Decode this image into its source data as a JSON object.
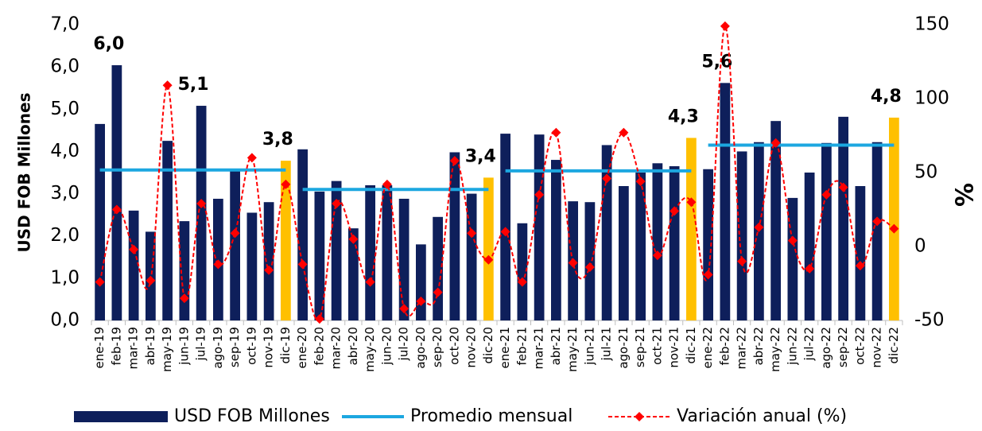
{
  "chart_data": {
    "type": "bar",
    "categories": [
      "ene-19",
      "feb-19",
      "mar-19",
      "abr-19",
      "may-19",
      "jun-19",
      "jul-19",
      "ago-19",
      "sep-19",
      "oct-19",
      "nov-19",
      "dic-19",
      "ene-20",
      "feb-20",
      "mar-20",
      "abr-20",
      "may-20",
      "jun-20",
      "jul-20",
      "ago-20",
      "sep-20",
      "oct-20",
      "nov-20",
      "dic-20",
      "ene-21",
      "feb-21",
      "mar-21",
      "abr-21",
      "may-21",
      "jun-21",
      "jul-21",
      "ago-21",
      "sep-21",
      "oct-21",
      "nov-21",
      "dic-21",
      "ene-22",
      "feb-22",
      "mar-22",
      "abr-22",
      "may-22",
      "jun-22",
      "jul-22",
      "ago-22",
      "sep-22",
      "oct-22",
      "nov-22",
      "dic-22"
    ],
    "ylabel": "USD FOB Millones",
    "y2label": "%",
    "ylim": [
      0,
      7
    ],
    "yticks": [
      {
        "value": 0,
        "label": "0,0"
      },
      {
        "value": 1,
        "label": "1,0"
      },
      {
        "value": 2,
        "label": "2,0"
      },
      {
        "value": 3,
        "label": "3,0"
      },
      {
        "value": 4,
        "label": "4,0"
      },
      {
        "value": 5,
        "label": "5,0"
      },
      {
        "value": 6,
        "label": "6,0"
      },
      {
        "value": 7,
        "label": "7,0"
      }
    ],
    "y2lim": [
      -50,
      150
    ],
    "y2ticks": [
      -50,
      0,
      50,
      100,
      150
    ],
    "legend": "bottom",
    "series": [
      {
        "name": "USD FOB Millones",
        "type": "bar",
        "color": "#0e1f5b",
        "highlight_color": "#ffc000",
        "colors": [
          "#0e1f5b",
          "#0e1f5b",
          "#0e1f5b",
          "#0e1f5b",
          "#0e1f5b",
          "#0e1f5b",
          "#0e1f5b",
          "#0e1f5b",
          "#0e1f5b",
          "#0e1f5b",
          "#0e1f5b",
          "#ffc000",
          "#0e1f5b",
          "#0e1f5b",
          "#0e1f5b",
          "#0e1f5b",
          "#0e1f5b",
          "#0e1f5b",
          "#0e1f5b",
          "#0e1f5b",
          "#0e1f5b",
          "#0e1f5b",
          "#0e1f5b",
          "#ffc000",
          "#0e1f5b",
          "#0e1f5b",
          "#0e1f5b",
          "#0e1f5b",
          "#0e1f5b",
          "#0e1f5b",
          "#0e1f5b",
          "#0e1f5b",
          "#0e1f5b",
          "#0e1f5b",
          "#0e1f5b",
          "#ffc000",
          "#0e1f5b",
          "#0e1f5b",
          "#0e1f5b",
          "#0e1f5b",
          "#0e1f5b",
          "#0e1f5b",
          "#0e1f5b",
          "#0e1f5b",
          "#0e1f5b",
          "#0e1f5b",
          "#0e1f5b",
          "#ffc000"
        ],
        "values": [
          4.65,
          6.04,
          2.6,
          2.1,
          4.25,
          2.35,
          5.08,
          2.88,
          3.55,
          2.55,
          2.8,
          3.78,
          4.05,
          3.05,
          3.3,
          2.18,
          3.2,
          3.2,
          2.88,
          1.8,
          2.45,
          3.98,
          3.0,
          3.38,
          4.42,
          2.3,
          4.4,
          3.8,
          2.82,
          2.8,
          4.15,
          3.18,
          3.5,
          3.72,
          3.65,
          4.32,
          3.58,
          5.62,
          4.0,
          4.22,
          4.72,
          2.9,
          3.5,
          4.2,
          4.82,
          3.18,
          4.22,
          4.8
        ],
        "value_labels": [
          null,
          "6,0",
          null,
          null,
          null,
          null,
          "5,1",
          null,
          null,
          null,
          null,
          "3,8",
          null,
          null,
          null,
          null,
          null,
          null,
          null,
          null,
          null,
          null,
          null,
          "3,4",
          null,
          null,
          null,
          null,
          null,
          null,
          null,
          null,
          null,
          null,
          null,
          "4,3",
          null,
          "5,6",
          null,
          null,
          null,
          null,
          null,
          null,
          null,
          null,
          null,
          "4,8"
        ]
      },
      {
        "name": "Promedio mensual",
        "type": "line",
        "color": "#1ca7e0",
        "values": [
          3.56,
          3.56,
          3.56,
          3.56,
          3.56,
          3.56,
          3.56,
          3.56,
          3.56,
          3.56,
          3.56,
          3.56,
          3.1,
          3.1,
          3.1,
          3.1,
          3.1,
          3.1,
          3.1,
          3.1,
          3.1,
          3.1,
          3.1,
          3.1,
          3.54,
          3.54,
          3.54,
          3.54,
          3.54,
          3.54,
          3.54,
          3.54,
          3.54,
          3.54,
          3.54,
          3.54,
          4.15,
          4.15,
          4.15,
          4.15,
          4.15,
          4.15,
          4.15,
          4.15,
          4.15,
          4.15,
          4.15,
          4.15
        ]
      },
      {
        "name": "Variación anual (%)",
        "type": "smooth-line",
        "axis": "y2",
        "color": "#ff0000",
        "dashed": true,
        "marker": "diamond",
        "values": [
          -24,
          25,
          -2,
          -23,
          109,
          -35,
          29,
          -12,
          9,
          60,
          -16,
          42,
          -12,
          -49,
          29,
          5,
          -24,
          42,
          -42,
          -37,
          -31,
          58,
          9,
          -9,
          10,
          -24,
          35,
          77,
          -11,
          -14,
          46,
          77,
          44,
          -6,
          24,
          30,
          -19,
          149,
          -10,
          13,
          70,
          4,
          -15,
          35,
          40,
          -13,
          17,
          12
        ]
      }
    ]
  }
}
